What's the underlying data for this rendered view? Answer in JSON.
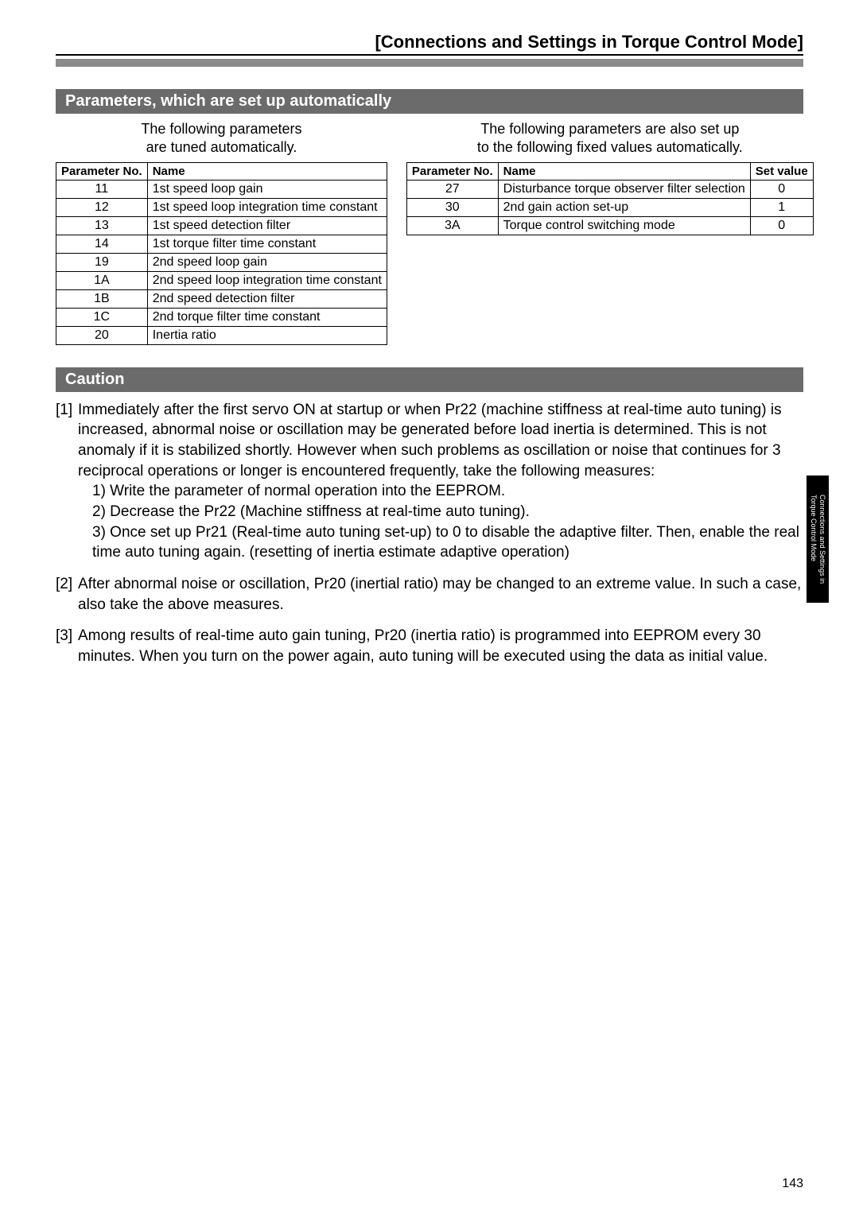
{
  "header": {
    "title": "[Connections and Settings in Torque Control Mode]"
  },
  "section1": {
    "title": "Parameters, which are set up automatically",
    "left_caption_l1": "The following parameters",
    "left_caption_l2": "are tuned automatically.",
    "right_caption_l1": "The following parameters are also set up",
    "right_caption_l2": "to the following fixed values automatically.",
    "table1": {
      "cols": [
        "Parameter No.",
        "Name"
      ],
      "rows": [
        [
          "11",
          "1st speed loop gain"
        ],
        [
          "12",
          "1st speed loop integration time constant"
        ],
        [
          "13",
          "1st speed detection filter"
        ],
        [
          "14",
          "1st torque filter time constant"
        ],
        [
          "19",
          "2nd speed loop gain"
        ],
        [
          "1A",
          "2nd speed loop integration time constant"
        ],
        [
          "1B",
          "2nd speed detection filter"
        ],
        [
          "1C",
          "2nd torque filter time constant"
        ],
        [
          "20",
          "Inertia ratio"
        ]
      ]
    },
    "table2": {
      "cols": [
        "Parameter No.",
        "Name",
        "Set value"
      ],
      "rows": [
        [
          "27",
          "Disturbance torque observer filter selection",
          "0"
        ],
        [
          "30",
          "2nd gain action set-up",
          "1"
        ],
        [
          "3A",
          "Torque control switching mode",
          "0"
        ]
      ]
    }
  },
  "caution": {
    "title": "Caution",
    "items": [
      {
        "num": "[1]",
        "text": "Immediately after the first servo ON at startup or when Pr22 (machine stiffness at real-time auto tuning) is increased, abnormal noise or oscillation may be generated before load inertia is determined.  This is not anomaly if it is stabilized shortly. However when such problems as oscillation or noise that continues for 3 reciprocal operations or longer is encountered frequently, take the following measures:",
        "subs": [
          "1) Write the parameter of normal operation into the EEPROM.",
          "2) Decrease the Pr22 (Machine stiffness at real-time auto tuning).",
          "3) Once set up Pr21 (Real-time auto tuning set-up) to 0 to disable the adaptive filter. Then, enable the real time auto tuning again. (resetting of inertia estimate adaptive operation)"
        ]
      },
      {
        "num": "[2]",
        "text": "After abnormal noise or oscillation, Pr20 (inertial ratio) may be changed to an extreme value.  In such a case, also take the above measures."
      },
      {
        "num": "[3]",
        "text": "Among results of real-time auto gain tuning, Pr20 (inertia ratio) is programmed into EEPROM every 30 minutes.  When you turn on the power again, auto tuning will be executed using the data as initial value."
      }
    ]
  },
  "side_tab": {
    "line1": "Connections and Settings in",
    "line2": "Torque Control Mode"
  },
  "page_number": "143"
}
